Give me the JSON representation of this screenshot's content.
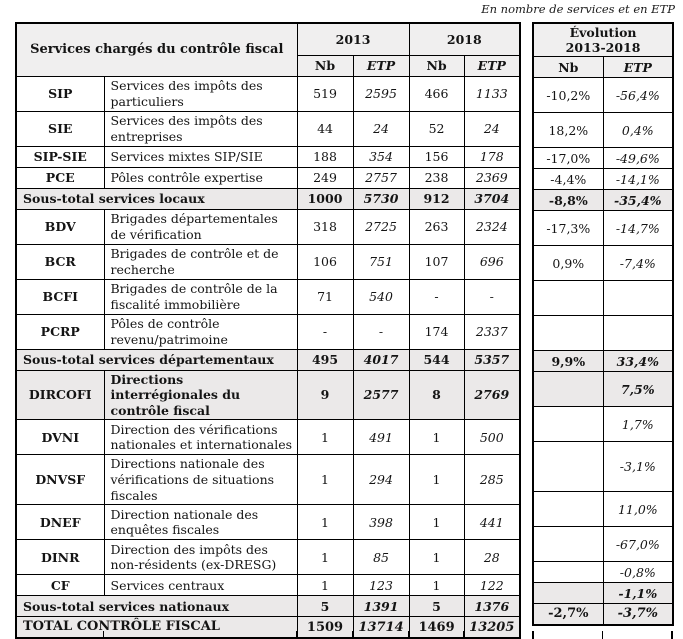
{
  "caption": "En nombre de services et en ETP",
  "main_table": {
    "title": "Services chargés du contrôle fiscal",
    "year_2013": "2013",
    "year_2018": "2018",
    "nb_label": "Nb",
    "etp_label": "ETP"
  },
  "evolution_table": {
    "title_line1": "Évolution",
    "title_line2": "2013-2018",
    "nb_label": "Nb",
    "etp_label": "ETP"
  },
  "colors": {
    "header_bg": "#f0efef",
    "subtotal_bg": "#ebe9e9",
    "border": "#000000",
    "text": "#141414"
  },
  "rows": [
    {
      "kind": "data",
      "acronym": "SIP",
      "label": "Services des impôts des particuliers",
      "nb2013": "519",
      "etp2013": "2595",
      "nb2018": "466",
      "etp2018": "1133",
      "evo_nb": "-10,2%",
      "evo_etp": "-56,4%",
      "lines": 2
    },
    {
      "kind": "data",
      "acronym": "SIE",
      "label": "Services des impôts des entreprises",
      "nb2013": "44",
      "etp2013": "24",
      "nb2018": "52",
      "etp2018": "24",
      "evo_nb": "18,2%",
      "evo_etp": "0,4%",
      "lines": 2
    },
    {
      "kind": "data",
      "acronym": "SIP-SIE",
      "label": "Services mixtes SIP/SIE",
      "nb2013": "188",
      "etp2013": "354",
      "nb2018": "156",
      "etp2018": "178",
      "evo_nb": "-17,0%",
      "evo_etp": "-49,6%",
      "lines": 1
    },
    {
      "kind": "data",
      "acronym": "PCE",
      "label": "Pôles contrôle expertise",
      "nb2013": "249",
      "etp2013": "2757",
      "nb2018": "238",
      "etp2018": "2369",
      "evo_nb": "-4,4%",
      "evo_etp": "-14,1%",
      "lines": 1
    },
    {
      "kind": "subtotal",
      "label": "Sous-total services locaux",
      "nb2013": "1000",
      "etp2013": "5730",
      "nb2018": "912",
      "etp2018": "3704",
      "evo_nb": "-8,8%",
      "evo_etp": "-35,4%",
      "lines": 1
    },
    {
      "kind": "data",
      "acronym": "BDV",
      "label": "Brigades départementales de vérification",
      "nb2013": "318",
      "etp2013": "2725",
      "nb2018": "263",
      "etp2018": "2324",
      "evo_nb": "-17,3%",
      "evo_etp": "-14,7%",
      "lines": 2
    },
    {
      "kind": "data",
      "acronym": "BCR",
      "label": "Brigades de contrôle et de recherche",
      "nb2013": "106",
      "etp2013": "751",
      "nb2018": "107",
      "etp2018": "696",
      "evo_nb": "0,9%",
      "evo_etp": "-7,4%",
      "lines": 2
    },
    {
      "kind": "data",
      "acronym": "BCFI",
      "label": "Brigades de contrôle de la fiscalité immobilière",
      "nb2013": "71",
      "etp2013": "540",
      "nb2018": "-",
      "etp2018": "-",
      "evo_nb": "",
      "evo_etp": "",
      "lines": 2
    },
    {
      "kind": "data",
      "acronym": "PCRP",
      "label": "Pôles de contrôle revenu/patrimoine",
      "nb2013": "-",
      "etp2013": "-",
      "nb2018": "174",
      "etp2018": "2337",
      "evo_nb": "",
      "evo_etp": "",
      "lines": 2
    },
    {
      "kind": "subtotal",
      "label": "Sous-total services départementaux",
      "nb2013": "495",
      "etp2013": "4017",
      "nb2018": "544",
      "etp2018": "5357",
      "evo_nb": "9,9%",
      "evo_etp": "33,4%",
      "lines": 1
    },
    {
      "kind": "data",
      "highlighted": true,
      "acronym": "DIRCOFI",
      "label": "Directions interrégionales du contrôle fiscal",
      "nb2013": "9",
      "etp2013": "2577",
      "nb2018": "8",
      "etp2018": "2769",
      "evo_nb": "",
      "evo_etp": "7,5%",
      "lines": 2
    },
    {
      "kind": "data",
      "acronym": "DVNI",
      "label": "Direction des vérifications nationales et internationales",
      "nb2013": "1",
      "etp2013": "491",
      "nb2018": "1",
      "etp2018": "500",
      "evo_nb": "",
      "evo_etp": "1,7%",
      "lines": 2
    },
    {
      "kind": "data",
      "acronym": "DNVSF",
      "label": "Directions nationale des vérifications de situations fiscales",
      "nb2013": "1",
      "etp2013": "294",
      "nb2018": "1",
      "etp2018": "285",
      "evo_nb": "",
      "evo_etp": "-3,1%",
      "lines": 3
    },
    {
      "kind": "data",
      "acronym": "DNEF",
      "label": "Direction nationale des enquêtes fiscales",
      "nb2013": "1",
      "etp2013": "398",
      "nb2018": "1",
      "etp2018": "441",
      "evo_nb": "",
      "evo_etp": "11,0%",
      "lines": 2
    },
    {
      "kind": "data",
      "acronym": "DINR",
      "label": "Direction des impôts des non-résidents (ex-DRESG)",
      "nb2013": "1",
      "etp2013": "85",
      "nb2018": "1",
      "etp2018": "28",
      "evo_nb": "",
      "evo_etp": "-67,0%",
      "lines": 2
    },
    {
      "kind": "data",
      "acronym": "CF",
      "label": "Services centraux",
      "nb2013": "1",
      "etp2013": "123",
      "nb2018": "1",
      "etp2018": "122",
      "evo_nb": "",
      "evo_etp": "-0,8%",
      "lines": 1
    },
    {
      "kind": "subtotal",
      "label": "Sous-total services nationaux",
      "nb2013": "5",
      "etp2013": "1391",
      "nb2018": "5",
      "etp2018": "1376",
      "evo_nb": "",
      "evo_etp": "-1,1%",
      "lines": 1
    },
    {
      "kind": "total",
      "label": "TOTAL CONTRÔLE FISCAL",
      "nb2013": "1509",
      "etp2013": "13714",
      "nb2018": "1469",
      "etp2018": "13205",
      "evo_nb": "-2,7%",
      "evo_etp": "-3,7%",
      "lines": 1
    }
  ]
}
